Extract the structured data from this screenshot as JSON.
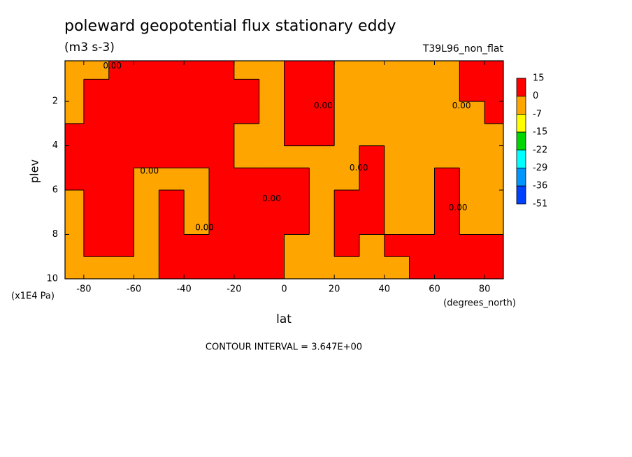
{
  "chart_data": {
    "type": "contour",
    "title": "poleward geopotential flux stationary eddy",
    "units": "(m3 s-3)",
    "dataset": "T39L96_non_flat",
    "xlabel": "lat",
    "xunits": "(degrees_north)",
    "ylabel": "plev",
    "yunits": "(x1E4 Pa)",
    "footer": "CONTOUR INTERVAL = 3.647E+00",
    "xlim": [
      -87.5,
      87.5
    ],
    "ylim": [
      0.17,
      10
    ],
    "yaxis_reversed": true,
    "xticks": [
      -80,
      -60,
      -40,
      -20,
      0,
      20,
      40,
      60,
      80
    ],
    "yticks": [
      2,
      4,
      6,
      8,
      10
    ],
    "lat": [
      -85,
      -75,
      -65,
      -55,
      -45,
      -35,
      -25,
      -15,
      -5,
      5,
      15,
      25,
      35,
      45,
      55,
      65,
      75,
      85
    ],
    "plev": [
      0.5,
      1.5,
      2.5,
      3.5,
      4.5,
      5.5,
      6.5,
      7.5,
      8.5,
      9.5
    ],
    "z": [
      [
        -5,
        -2,
        4,
        4,
        4,
        4,
        4,
        -2,
        -2,
        4,
        4,
        -2,
        -2,
        -2,
        -2,
        -2,
        4,
        4
      ],
      [
        -2,
        4,
        4,
        4,
        4,
        4,
        4,
        4,
        -2,
        4,
        4,
        -2,
        -2,
        -2,
        -2,
        -2,
        4,
        4
      ],
      [
        -2,
        4,
        4,
        4,
        4,
        4,
        4,
        4,
        -2,
        4,
        4,
        -2,
        -2,
        -2,
        -2,
        -2,
        -2,
        4
      ],
      [
        4,
        4,
        4,
        4,
        4,
        4,
        4,
        -2,
        -2,
        4,
        4,
        -2,
        -2,
        -2,
        -2,
        -2,
        -2,
        -2
      ],
      [
        4,
        4,
        4,
        4,
        4,
        4,
        4,
        -2,
        -2,
        -2,
        -2,
        -2,
        4,
        -2,
        -2,
        -2,
        -2,
        -2
      ],
      [
        4,
        4,
        4,
        -2,
        -2,
        -2,
        4,
        4,
        4,
        4,
        -2,
        -2,
        4,
        -2,
        -2,
        4,
        -2,
        -2
      ],
      [
        -2,
        4,
        4,
        -2,
        4,
        -2,
        4,
        4,
        4,
        4,
        -2,
        4,
        4,
        -2,
        -2,
        4,
        -2,
        -2
      ],
      [
        -2,
        4,
        4,
        -2,
        4,
        -2,
        4,
        4,
        4,
        4,
        -2,
        4,
        4,
        -2,
        -2,
        4,
        -2,
        -2
      ],
      [
        -2,
        4,
        4,
        -2,
        4,
        4,
        4,
        4,
        4,
        -2,
        -2,
        4,
        -2,
        4,
        4,
        4,
        4,
        4
      ],
      [
        -2,
        -2,
        -2,
        -2,
        4,
        4,
        4,
        4,
        4,
        -2,
        -2,
        -2,
        -2,
        -2,
        4,
        4,
        4,
        4
      ]
    ],
    "levels": [
      15,
      0,
      -7,
      -15,
      -22,
      -29,
      -36,
      -51
    ],
    "colors": [
      "#ff0000",
      "#ffa500",
      "#ffff00",
      "#00d700",
      "#00ffff",
      "#0096ff",
      "#0040ff"
    ],
    "contour_labels": [
      {
        "label": "0.00",
        "lat": -68.6,
        "plev": 0.4
      },
      {
        "label": "0.00",
        "lat": -53.8,
        "plev": 5.15
      },
      {
        "label": "0.00",
        "lat": -31.8,
        "plev": 7.7
      },
      {
        "label": "0.00",
        "lat": -5,
        "plev": 6.4
      },
      {
        "label": "0.00",
        "lat": 15.6,
        "plev": 2.2
      },
      {
        "label": "0.00",
        "lat": 29.8,
        "plev": 5.0
      },
      {
        "label": "0.00",
        "lat": 70.8,
        "plev": 2.2
      },
      {
        "label": "0.00",
        "lat": 69.4,
        "plev": 6.8
      }
    ]
  }
}
